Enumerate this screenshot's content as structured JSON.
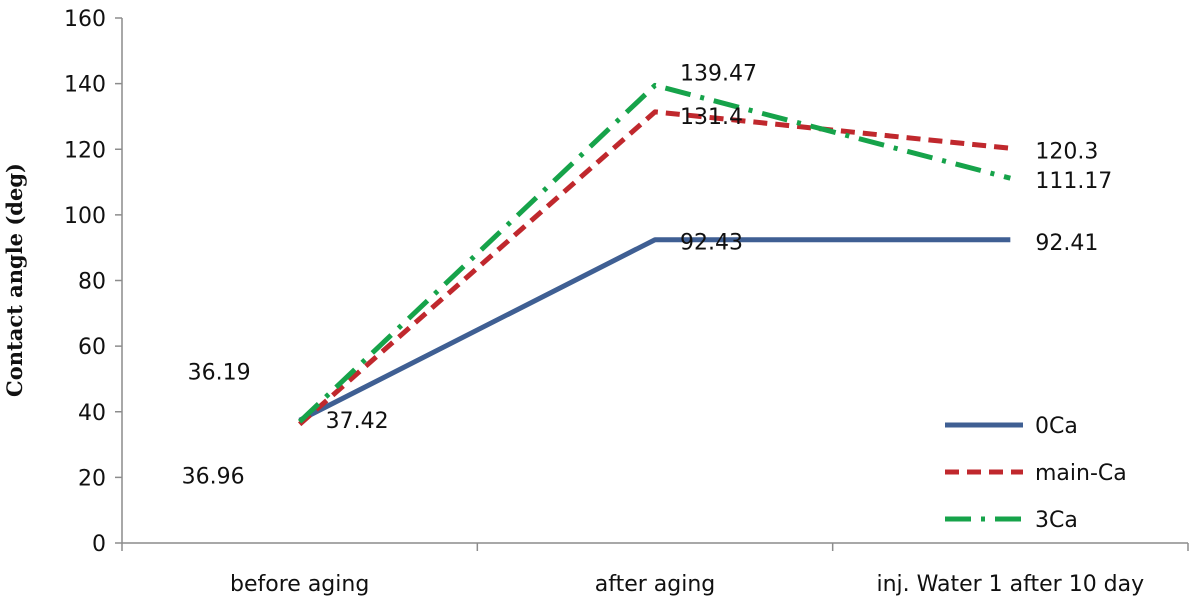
{
  "chart_data": {
    "type": "line",
    "categories": [
      "before aging",
      "after aging",
      "inj. Water 1 after 10 day"
    ],
    "ylabel": "Contact angle (deg)",
    "ylim": [
      0,
      160
    ],
    "yticks": [
      0,
      20,
      40,
      60,
      80,
      100,
      120,
      140,
      160
    ],
    "grid": false,
    "legend_position": "bottom-right",
    "series": [
      {
        "name": "0Ca",
        "values": [
          37.42,
          92.43,
          92.41
        ],
        "color": "#3f5f93",
        "dash": "solid",
        "labels": [
          "37.42",
          "92.43",
          "92.41"
        ]
      },
      {
        "name": "main-Ca",
        "values": [
          36.19,
          131.4,
          120.3
        ],
        "color": "#c0282d",
        "dash": "dash",
        "labels": [
          "36.19",
          "131.4",
          "120.3"
        ]
      },
      {
        "name": "3Ca",
        "values": [
          36.96,
          139.47,
          111.17
        ],
        "color": "#16a34a",
        "dash": "dashdot",
        "labels": [
          "36.96",
          "139.47",
          "111.17"
        ]
      }
    ]
  }
}
